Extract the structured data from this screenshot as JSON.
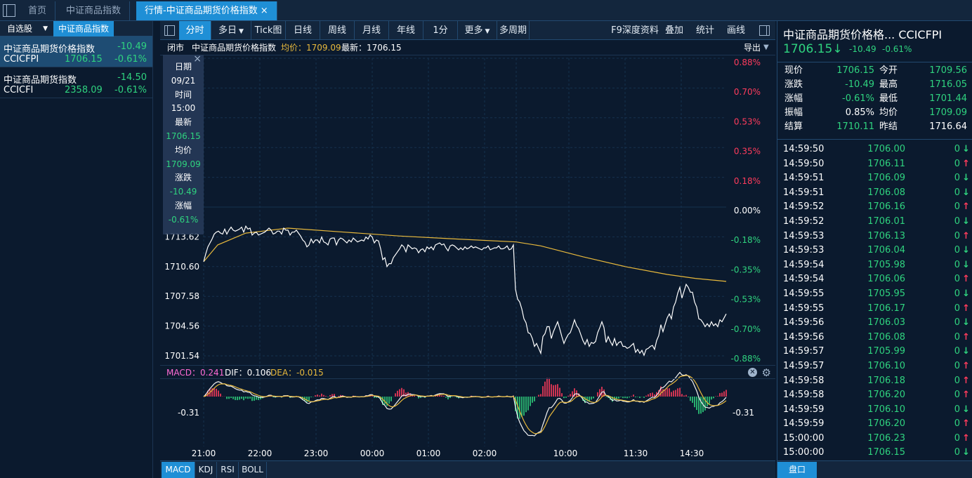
{
  "top_tabs": [
    {
      "label": "首页"
    },
    {
      "label": "中证商品指数"
    },
    {
      "label": "行情-中证商品期货价格指数"
    }
  ],
  "close_glyph": "×",
  "sidebar": {
    "tab_watchlist": "自选股",
    "tab_csi": "中证商品指数",
    "items": [
      {
        "name": "中证商品期货价格指数",
        "change": "-10.49",
        "code": "CCICFPI",
        "price": "1706.15",
        "pct": "-0.61%"
      },
      {
        "name": "中证商品期货指数",
        "change": "-14.50",
        "code": "CCICFI",
        "price": "2358.09",
        "pct": "-0.61%"
      }
    ]
  },
  "toolbar": {
    "periods": [
      "分时",
      "多日",
      "Tick图",
      "日线",
      "周线",
      "月线",
      "年线",
      "1分",
      "更多",
      "多周期"
    ],
    "tools": [
      "F9深度资料",
      "叠加",
      "统计",
      "画线"
    ]
  },
  "info": {
    "status": "闭市",
    "name": "中证商品期货价格指数",
    "avg": "均价：1709.09",
    "last": "最新：1706.15",
    "export": "导出"
  },
  "tooltip": {
    "date_label": "日期",
    "date": "09/21",
    "time_label": "时间",
    "time": "15:00",
    "last_label": "最新",
    "last": "1706.15",
    "avg_label": "均价",
    "avg": "1709.09",
    "chg_label": "涨跌",
    "chg": "-10.49",
    "pct_label": "涨幅",
    "pct": "-0.61%"
  },
  "macd": {
    "macd": "MACD：0.241",
    "dif": "DIF：0.106",
    "dea": "DEA：-0.015",
    "axis_left": "-0.31",
    "axis_right": "-0.31"
  },
  "indicator_tabs": [
    "MACD",
    "KDJ",
    "RSI",
    "BOLL"
  ],
  "chart_data": {
    "type": "line",
    "title": "中证商品期货价格指数",
    "x_labels": [
      "21:00",
      "22:00",
      "23:00",
      "00:00",
      "01:00",
      "02:00",
      "10:00",
      "11:30",
      "14:30"
    ],
    "y_left_labels": [
      "1713.62",
      "1710.60",
      "1707.58",
      "1704.56",
      "1701.54"
    ],
    "y_left_values": [
      1713.62,
      1710.6,
      1707.58,
      1704.56,
      1701.54
    ],
    "y_right_labels": [
      "0.88%",
      "0.70%",
      "0.53%",
      "0.35%",
      "0.18%",
      "0.00%",
      "-0.18%",
      "-0.35%",
      "-0.53%",
      "-0.70%",
      "-0.88%"
    ],
    "y_range": [
      1701.54,
      1731.74
    ],
    "prev_settle": 1716.64,
    "series": [
      {
        "name": "最新",
        "color": "#ffffff",
        "x": [
          0,
          3,
          6,
          9,
          12,
          15,
          18,
          21,
          24,
          27,
          30,
          33,
          36,
          39,
          42,
          45,
          48,
          51,
          54,
          57,
          60,
          63,
          66,
          69,
          72,
          75,
          78,
          81,
          84,
          87,
          90,
          93,
          96,
          99,
          102,
          105,
          108,
          111,
          114,
          117,
          120,
          123,
          126,
          129,
          132,
          135,
          138,
          141,
          144,
          147,
          150,
          153,
          156,
          159,
          162,
          165,
          168,
          171,
          174,
          177,
          180,
          183,
          186,
          189,
          192,
          195,
          198,
          201,
          204,
          207,
          210,
          213,
          216,
          219,
          222,
          225,
          228,
          231,
          234,
          237,
          240,
          243,
          246,
          249,
          252,
          255,
          258,
          261,
          264,
          267,
          270,
          273,
          276,
          279,
          282,
          285,
          288,
          291,
          294,
          297,
          300,
          303,
          306,
          309,
          312,
          315,
          318,
          321,
          324,
          327,
          330,
          333,
          336,
          339,
          342,
          345,
          348,
          351,
          354,
          357,
          360,
          363,
          366,
          369,
          372,
          375,
          378,
          381,
          384,
          387,
          390,
          393,
          396,
          399,
          402,
          405,
          408,
          411,
          414,
          417,
          420,
          423,
          426,
          429,
          432,
          435,
          438,
          441,
          444,
          447,
          450,
          453,
          456,
          459,
          462,
          465,
          468,
          471,
          474,
          477,
          480,
          483,
          486,
          489,
          492,
          495,
          498,
          501,
          504,
          507,
          510,
          513,
          516,
          519,
          522,
          525,
          528,
          531,
          534,
          537,
          540,
          543,
          546,
          549,
          552,
          555,
          558,
          561,
          564,
          567,
          570,
          573,
          576,
          579,
          582,
          585,
          588,
          591,
          594,
          597,
          600,
          603,
          606,
          609,
          612,
          615,
          618,
          621,
          624,
          627,
          630,
          633,
          636,
          639,
          642,
          645,
          648,
          651,
          654,
          657,
          660,
          663,
          666,
          669,
          672,
          675,
          678,
          681,
          684,
          687,
          690,
          693,
          696,
          699,
          702,
          705,
          708,
          711,
          714,
          717,
          720,
          723,
          726,
          729,
          732,
          735,
          738,
          741,
          744
        ],
        "y": [
          1711.1,
          1711.9,
          1712.6,
          1713.0,
          1713.4,
          1713.9,
          1714.1,
          1714.2,
          1714.0,
          1713.9,
          1714.4,
          1713.9,
          1714.3,
          1714.6,
          1714.3,
          1714.2,
          1714.3,
          1714.4,
          1714.6,
          1714.1,
          1714.7,
          1714.4,
          1714.5,
          1713.8,
          1714.0,
          1714.1,
          1713.8,
          1713.9,
          1714.0,
          1714.1,
          1714.3,
          1714.5,
          1714.3,
          1713.9,
          1714.0,
          1714.2,
          1714.2,
          1713.9,
          1714.5,
          1714.3,
          1714.3,
          1713.8,
          1714.1,
          1714.1,
          1714.3,
          1714.0,
          1713.7,
          1713.3,
          1713.1,
          1712.6,
          1712.8,
          1713.4,
          1713.0,
          1713.3,
          1713.3,
          1713.0,
          1713.6,
          1713.1,
          1713.0,
          1712.8,
          1713.4,
          1713.5,
          1713.5,
          1712.8,
          1713.3,
          1713.5,
          1713.4,
          1713.2,
          1713.0,
          1713.3,
          1713.1,
          1713.5,
          1713.3,
          1713.1,
          1713.2,
          1713.3,
          1713.2,
          1713.6,
          1713.4,
          1713.8,
          1713.6,
          1713.0,
          1713.3,
          1713.2,
          1712.4,
          1711.3,
          1711.5,
          1710.6,
          1710.9,
          1710.9,
          1711.5,
          1711.8,
          1712.1,
          1712.4,
          1712.8,
          1712.6,
          1712.1,
          1712.8,
          1712.6,
          1712.4,
          1712.5,
          1712.4,
          1712.0,
          1712.3,
          1712.4,
          1712.1,
          1712.6,
          1712.4,
          1712.6,
          1712.3,
          1712.8,
          1712.9,
          1713.0,
          1712.8,
          1712.9,
          1712.5,
          1712.2,
          1712.7,
          1712.8,
          1712.7,
          1712.5,
          1712.3,
          1712.5,
          1712.3,
          1712.6,
          1712.4,
          1712.5,
          1712.7,
          1712.5,
          1712.6,
          1712.5,
          1712.4,
          1712.3,
          1712.5,
          1712.5,
          1712.7,
          1712.3,
          1712.4,
          1712.5,
          1712.5,
          1712.7,
          1712.4,
          1712.4,
          1712.5,
          1712.7,
          1712.3,
          1712.4,
          1712.8,
          1708.3,
          1707.3,
          1707.0,
          1706.3,
          1705.3,
          1704.9,
          1703.9,
          1703.8,
          1703.3,
          1702.5,
          1702.8,
          1702.3,
          1701.8,
          1703.5,
          1703.8,
          1704.5,
          1704.5,
          1703.3,
          1704.0,
          1704.5,
          1705.0,
          1704.3,
          1703.5,
          1702.8,
          1703.3,
          1703.7,
          1703.9,
          1704.5,
          1705.2,
          1704.6,
          1704.3,
          1703.7,
          1703.1,
          1702.7,
          1703.2,
          1702.5,
          1702.9,
          1702.8,
          1703.0,
          1703.9,
          1704.4,
          1705.0,
          1704.4,
          1702.9,
          1703.5,
          1703.0,
          1702.6,
          1703.3,
          1702.6,
          1702.9,
          1703.0,
          1702.5,
          1702.5,
          1702.3,
          1702.4,
          1702.6,
          1702.8,
          1701.9,
          1702.2,
          1701.8,
          1702.1,
          1701.6,
          1702.2,
          1702.3,
          1702.5,
          1702.6,
          1702.2,
          1703.1,
          1703.6,
          1704.7,
          1704.0,
          1704.7,
          1705.4,
          1705.8,
          1705.3,
          1706.5,
          1707.0,
          1707.9,
          1708.5,
          1707.4,
          1708.1,
          1708.8,
          1708.5,
          1708.0,
          1708.0,
          1707.0,
          1706.5,
          1705.3,
          1705.2,
          1704.9,
          1704.5,
          1704.8,
          1704.5,
          1705.0,
          1704.6,
          1704.8,
          1704.5,
          1705.2,
          1705.0,
          1705.4,
          1705.8
        ]
      },
      {
        "name": "均价",
        "color": "#e8b93c",
        "x": [
          0,
          20,
          60,
          120,
          200,
          280,
          360,
          445,
          480,
          540,
          600,
          660,
          700,
          744
        ],
        "y": [
          1711.1,
          1712.8,
          1714.0,
          1714.5,
          1714.1,
          1713.7,
          1713.4,
          1713.1,
          1712.7,
          1711.6,
          1710.6,
          1709.8,
          1709.4,
          1709.1
        ]
      }
    ]
  },
  "right_panel": {
    "title": "中证商品期货价格格... CCICFPI",
    "price": "1706.15",
    "price_arrow": "↓",
    "change": "-10.49",
    "pct": "-0.61%",
    "quote_rows": [
      {
        "k1": "现价",
        "v1": "1706.15",
        "c1": "#2fd37f",
        "k2": "今开",
        "v2": "1709.56",
        "c2": "#2fd37f"
      },
      {
        "k1": "涨跌",
        "v1": "-10.49",
        "c1": "#2fd37f",
        "k2": "最高",
        "v2": "1716.05",
        "c2": "#2fd37f"
      },
      {
        "k1": "涨幅",
        "v1": "-0.61%",
        "c1": "#2fd37f",
        "k2": "最低",
        "v2": "1701.44",
        "c2": "#2fd37f"
      },
      {
        "k1": "振幅",
        "v1": "0.85%",
        "c1": "#ffffff",
        "k2": "均价",
        "v2": "1709.09",
        "c2": "#2fd37f"
      },
      {
        "k1": "结算",
        "v1": "1710.11",
        "c1": "#2fd37f",
        "k2": "昨结",
        "v2": "1716.64",
        "c2": "#ffffff"
      }
    ],
    "ticks": [
      {
        "time": "14:59:50",
        "price": "1706.00",
        "vol": "0",
        "dir": "↓"
      },
      {
        "time": "14:59:50",
        "price": "1706.11",
        "vol": "0",
        "dir": "↑"
      },
      {
        "time": "14:59:51",
        "price": "1706.09",
        "vol": "0",
        "dir": "↓"
      },
      {
        "time": "14:59:51",
        "price": "1706.08",
        "vol": "0",
        "dir": "↓"
      },
      {
        "time": "14:59:52",
        "price": "1706.16",
        "vol": "0",
        "dir": "↑"
      },
      {
        "time": "14:59:52",
        "price": "1706.01",
        "vol": "0",
        "dir": "↓"
      },
      {
        "time": "14:59:53",
        "price": "1706.13",
        "vol": "0",
        "dir": "↑"
      },
      {
        "time": "14:59:53",
        "price": "1706.04",
        "vol": "0",
        "dir": "↓"
      },
      {
        "time": "14:59:54",
        "price": "1705.98",
        "vol": "0",
        "dir": "↓"
      },
      {
        "time": "14:59:54",
        "price": "1706.06",
        "vol": "0",
        "dir": "↑"
      },
      {
        "time": "14:59:55",
        "price": "1705.95",
        "vol": "0",
        "dir": "↓"
      },
      {
        "time": "14:59:55",
        "price": "1706.17",
        "vol": "0",
        "dir": "↑"
      },
      {
        "time": "14:59:56",
        "price": "1706.03",
        "vol": "0",
        "dir": "↓"
      },
      {
        "time": "14:59:56",
        "price": "1706.08",
        "vol": "0",
        "dir": "↑"
      },
      {
        "time": "14:59:57",
        "price": "1705.99",
        "vol": "0",
        "dir": "↓"
      },
      {
        "time": "14:59:57",
        "price": "1706.10",
        "vol": "0",
        "dir": "↑"
      },
      {
        "time": "14:59:58",
        "price": "1706.18",
        "vol": "0",
        "dir": "↑"
      },
      {
        "time": "14:59:58",
        "price": "1706.20",
        "vol": "0",
        "dir": "↑"
      },
      {
        "time": "14:59:59",
        "price": "1706.10",
        "vol": "0",
        "dir": "↓"
      },
      {
        "time": "14:59:59",
        "price": "1706.20",
        "vol": "0",
        "dir": "↑"
      },
      {
        "time": "15:00:00",
        "price": "1706.23",
        "vol": "0",
        "dir": "↑"
      },
      {
        "time": "15:00:00",
        "price": "1706.15",
        "vol": "0",
        "dir": "↓"
      }
    ],
    "pankou": "盘口"
  },
  "colors": {
    "up": "#ff3b5c",
    "down": "#2fd37f",
    "accent": "#1f8fd6",
    "avg_line": "#e8b93c",
    "macd_label": "#ff6bd5",
    "avg_text": "#e8b93c"
  }
}
